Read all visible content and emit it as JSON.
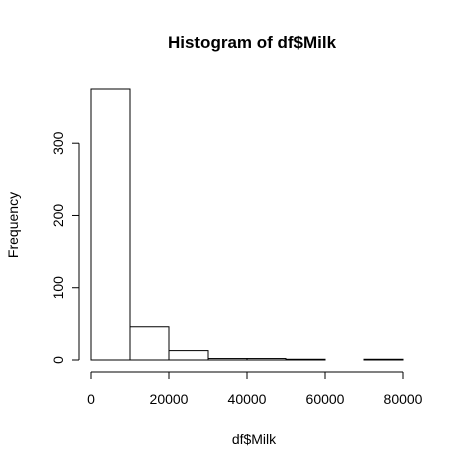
{
  "chart_data": {
    "type": "bar",
    "title": "Histogram of df$Milk",
    "xlabel": "df$Milk",
    "ylabel": "Frequency",
    "bins": [
      {
        "start": 0,
        "end": 10000,
        "count": 375
      },
      {
        "start": 10000,
        "end": 20000,
        "count": 46
      },
      {
        "start": 20000,
        "end": 30000,
        "count": 13
      },
      {
        "start": 30000,
        "end": 40000,
        "count": 2
      },
      {
        "start": 40000,
        "end": 50000,
        "count": 2
      },
      {
        "start": 50000,
        "end": 60000,
        "count": 1
      },
      {
        "start": 60000,
        "end": 70000,
        "count": 0
      },
      {
        "start": 70000,
        "end": 80000,
        "count": 1
      }
    ],
    "xlim": [
      0,
      80000
    ],
    "ylim": [
      0,
      375
    ],
    "x_ticks": [
      {
        "value": 0,
        "label": "0"
      },
      {
        "value": 20000,
        "label": "20000"
      },
      {
        "value": 40000,
        "label": "40000"
      },
      {
        "value": 60000,
        "label": "60000"
      },
      {
        "value": 80000,
        "label": "80000"
      }
    ],
    "y_ticks": [
      {
        "value": 0,
        "label": "0"
      },
      {
        "value": 100,
        "label": "100"
      },
      {
        "value": 200,
        "label": "200"
      },
      {
        "value": 300,
        "label": "300"
      }
    ],
    "grid": false,
    "legend": "none"
  }
}
